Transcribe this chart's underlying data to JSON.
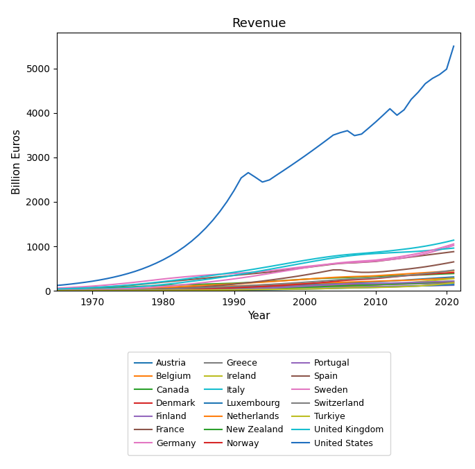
{
  "title": "Revenue",
  "xlabel": "Year",
  "ylabel": "Billion Euros",
  "countries": {
    "Austria": {
      "color": "#1f77b4",
      "start_year": 1965,
      "values": [
        7,
        8,
        9,
        10,
        11,
        12,
        14,
        16,
        18,
        21,
        24,
        27,
        30,
        34,
        38,
        43,
        48,
        54,
        60,
        65,
        70,
        74,
        78,
        82,
        86,
        90,
        95,
        100,
        105,
        110,
        115,
        120,
        125,
        130,
        135,
        140,
        145,
        150,
        160,
        170,
        175,
        180,
        185,
        190,
        195,
        200,
        210,
        220,
        230,
        240,
        250,
        260,
        270,
        280,
        290,
        300,
        310
      ]
    },
    "Belgium": {
      "color": "#ff7f0e",
      "start_year": 1965,
      "values": [
        8,
        9,
        10,
        12,
        14,
        16,
        18,
        21,
        25,
        28,
        32,
        37,
        42,
        48,
        54,
        60,
        65,
        70,
        75,
        80,
        85,
        90,
        95,
        100,
        105,
        110,
        115,
        120,
        125,
        130,
        140,
        145,
        150,
        155,
        160,
        165,
        170,
        175,
        180,
        185,
        190,
        195,
        200,
        205,
        210,
        215,
        220,
        225,
        230,
        235,
        240,
        248,
        255,
        262,
        268,
        274,
        280
      ]
    },
    "Canada": {
      "color": "#2ca02c",
      "start_year": 1965,
      "values": [
        30,
        33,
        37,
        41,
        46,
        51,
        57,
        63,
        70,
        77,
        85,
        93,
        100,
        108,
        115,
        120,
        125,
        130,
        135,
        140,
        145,
        150,
        155,
        160,
        165,
        170,
        178,
        185,
        192,
        200,
        210,
        220,
        230,
        240,
        250,
        260,
        268,
        275,
        282,
        288,
        293,
        298,
        305,
        312,
        318,
        325,
        332,
        338,
        342,
        345,
        350,
        355,
        360,
        368,
        375,
        382,
        388
      ]
    },
    "Denmark": {
      "color": "#d62728",
      "start_year": 1965,
      "values": [
        5,
        6,
        7,
        8,
        9,
        11,
        12,
        14,
        16,
        19,
        22,
        25,
        28,
        32,
        36,
        40,
        44,
        48,
        52,
        56,
        60,
        63,
        66,
        69,
        72,
        75,
        78,
        81,
        84,
        87,
        90,
        93,
        96,
        99,
        102,
        105,
        108,
        111,
        114,
        117,
        120,
        123,
        126,
        129,
        132,
        135,
        140,
        145,
        150,
        155,
        160,
        165,
        170,
        174,
        178,
        182,
        186
      ]
    },
    "Finland": {
      "color": "#9467bd",
      "start_year": 1965,
      "values": [
        3,
        3.5,
        4,
        4.5,
        5,
        6,
        7,
        8,
        9,
        10,
        12,
        14,
        16,
        18,
        20,
        23,
        26,
        29,
        32,
        35,
        38,
        41,
        44,
        47,
        50,
        53,
        56,
        59,
        62,
        65,
        68,
        70,
        72,
        74,
        76,
        78,
        80,
        82,
        84,
        86,
        88,
        90,
        92,
        94,
        96,
        98,
        100,
        102,
        104,
        106,
        108,
        110,
        113,
        116,
        119,
        122,
        125
      ]
    },
    "France": {
      "color": "#8c564b",
      "start_year": 1965,
      "values": [
        40,
        45,
        50,
        56,
        63,
        70,
        78,
        87,
        97,
        108,
        120,
        133,
        147,
        162,
        178,
        195,
        210,
        225,
        240,
        255,
        270,
        285,
        300,
        315,
        330,
        345,
        360,
        375,
        390,
        405,
        420,
        440,
        460,
        480,
        500,
        520,
        540,
        560,
        580,
        600,
        615,
        625,
        630,
        640,
        650,
        660,
        680,
        700,
        720,
        740,
        760,
        780,
        800,
        820,
        840,
        860,
        880
      ]
    },
    "Germany": {
      "color": "#e377c2",
      "start_year": 1965,
      "values": [
        60,
        67,
        75,
        84,
        94,
        105,
        117,
        130,
        144,
        159,
        175,
        192,
        210,
        228,
        247,
        265,
        282,
        298,
        313,
        327,
        340,
        352,
        363,
        373,
        382,
        390,
        400,
        410,
        422,
        435,
        450,
        468,
        487,
        506,
        525,
        543,
        560,
        577,
        592,
        607,
        620,
        630,
        638,
        645,
        655,
        668,
        685,
        700,
        720,
        745,
        770,
        800,
        835,
        875,
        920,
        970,
        1020
      ]
    },
    "Greece": {
      "color": "#7f7f7f",
      "start_year": 1965,
      "values": [
        2,
        2.2,
        2.5,
        2.8,
        3.2,
        3.6,
        4.1,
        4.7,
        5.3,
        6,
        7,
        8,
        9.5,
        11,
        12.5,
        14,
        16,
        18,
        20,
        22,
        25,
        28,
        31,
        35,
        39,
        44,
        49,
        55,
        61,
        68,
        75,
        83,
        91,
        100,
        109,
        118,
        127,
        136,
        143,
        149,
        154,
        157,
        158,
        157,
        155,
        153,
        150,
        148,
        148,
        150,
        153,
        156,
        159,
        162,
        165,
        168,
        171
      ]
    },
    "Ireland": {
      "color": "#bcbd22",
      "start_year": 1965,
      "values": [
        1,
        1.2,
        1.4,
        1.6,
        1.9,
        2.2,
        2.6,
        3,
        3.5,
        4,
        4.7,
        5.5,
        6.3,
        7.2,
        8.2,
        9.3,
        10.5,
        11.8,
        13.2,
        14.7,
        16.5,
        18.5,
        20.7,
        23,
        25.5,
        28,
        31,
        34,
        38,
        42,
        47,
        52,
        57,
        63,
        69,
        75,
        82,
        90,
        98,
        105,
        108,
        110,
        113,
        118,
        124,
        132,
        142,
        152,
        163,
        175,
        188,
        200,
        215,
        230,
        245,
        260,
        275
      ]
    },
    "Italy": {
      "color": "#17becf",
      "start_year": 1965,
      "values": [
        20,
        23,
        26,
        29,
        33,
        37,
        42,
        48,
        55,
        63,
        72,
        83,
        95,
        109,
        124,
        140,
        157,
        175,
        194,
        213,
        233,
        254,
        276,
        299,
        323,
        348,
        374,
        400,
        427,
        455,
        483,
        512,
        541,
        570,
        599,
        628,
        657,
        685,
        712,
        737,
        760,
        781,
        799,
        815,
        828,
        838,
        845,
        855,
        862,
        870,
        878,
        888,
        900,
        915,
        930,
        945,
        960
      ]
    },
    "Luxembourg": {
      "color": "#1f77b4",
      "start_year": 1965,
      "values": [
        0.5,
        0.6,
        0.7,
        0.8,
        0.9,
        1.0,
        1.2,
        1.4,
        1.6,
        1.9,
        2.2,
        2.5,
        2.9,
        3.3,
        3.8,
        4.3,
        4.9,
        5.5,
        6.2,
        7.0,
        7.9,
        8.9,
        10,
        11.2,
        12.5,
        14,
        15.7,
        17.5,
        19.5,
        21.7,
        24,
        26.5,
        29,
        31.8,
        34.8,
        38,
        41.5,
        45,
        49,
        53,
        57,
        61,
        65,
        69,
        73,
        77,
        82,
        87,
        92,
        97,
        102,
        108,
        114,
        120,
        126,
        133,
        140
      ]
    },
    "Netherlands": {
      "color": "#ff7f0e",
      "start_year": 1965,
      "values": [
        12,
        14,
        16,
        18,
        20,
        23,
        26,
        30,
        34,
        38,
        43,
        48,
        54,
        61,
        68,
        76,
        84,
        92,
        100,
        108,
        116,
        124,
        132,
        140,
        148,
        156,
        165,
        174,
        184,
        194,
        204,
        215,
        226,
        237,
        248,
        259,
        270,
        281,
        291,
        300,
        308,
        315,
        320,
        325,
        330,
        338,
        348,
        358,
        368,
        378,
        388,
        398,
        408,
        418,
        428,
        438,
        448
      ]
    },
    "New Zealand": {
      "color": "#2ca02c",
      "start_year": 1965,
      "values": [
        2,
        2.3,
        2.6,
        2.9,
        3.3,
        3.7,
        4.2,
        4.7,
        5.3,
        6,
        6.8,
        7.7,
        8.7,
        9.8,
        11,
        12.3,
        13.8,
        15.4,
        17.2,
        19.1,
        21.2,
        23.5,
        26,
        28.7,
        31.6,
        34.7,
        38,
        41.5,
        45.3,
        49.3,
        53.6,
        58.2,
        63,
        68,
        73.3,
        78.8,
        84.7,
        91,
        97.5,
        104,
        110,
        115,
        120,
        125,
        130,
        136,
        143,
        150,
        157,
        164,
        171,
        178,
        185,
        192,
        200,
        208,
        216
      ]
    },
    "Norway": {
      "color": "#d62728",
      "start_year": 1965,
      "values": [
        4,
        4.5,
        5,
        5.7,
        6.5,
        7.3,
        8.3,
        9.4,
        10.7,
        12.1,
        13.7,
        15.5,
        17.5,
        19.8,
        22.3,
        25,
        28,
        31.3,
        34.8,
        38.6,
        42.7,
        47.1,
        52,
        57.3,
        63,
        69,
        75.5,
        82.5,
        90,
        98,
        106,
        115,
        124,
        134,
        145,
        156,
        168,
        181,
        195,
        210,
        225,
        238,
        248,
        256,
        265,
        276,
        290,
        305,
        320,
        335,
        348,
        360,
        372,
        383,
        393,
        402,
        410
      ]
    },
    "Portugal": {
      "color": "#9467bd",
      "start_year": 1965,
      "values": [
        1,
        1.1,
        1.3,
        1.5,
        1.7,
        1.9,
        2.2,
        2.5,
        2.9,
        3.3,
        3.8,
        4.4,
        5.1,
        5.9,
        6.8,
        7.8,
        9,
        10.4,
        12,
        14,
        16.3,
        18.8,
        21.6,
        24.8,
        28.4,
        32.4,
        36.9,
        41.9,
        47.5,
        53.7,
        60.5,
        68,
        76.2,
        85,
        94,
        103,
        112,
        121,
        130,
        139,
        147,
        153,
        157,
        159,
        160,
        163,
        167,
        172,
        177,
        182,
        187,
        192,
        197,
        202,
        207,
        213,
        219
      ]
    },
    "Spain": {
      "color": "#8c564b",
      "start_year": 1965,
      "values": [
        5,
        6,
        7,
        8,
        9,
        10.5,
        12,
        14,
        16,
        18.5,
        21.5,
        25,
        29,
        33.5,
        38.5,
        44,
        50,
        57,
        65,
        74,
        84,
        95,
        107,
        120,
        134,
        149,
        165,
        182,
        200,
        219,
        239,
        260,
        282,
        305,
        329,
        355,
        382,
        410,
        440,
        470,
        470,
        445,
        425,
        415,
        415,
        420,
        430,
        445,
        462,
        480,
        498,
        518,
        540,
        565,
        592,
        620,
        650
      ]
    },
    "Sweden": {
      "color": "#e377c2",
      "start_year": 1965,
      "values": [
        10,
        12,
        14,
        16,
        19,
        22,
        26,
        30,
        35,
        41,
        48,
        56,
        65,
        75,
        86,
        98,
        111,
        125,
        140,
        156,
        173,
        190,
        208,
        227,
        247,
        268,
        290,
        313,
        337,
        362,
        388,
        414,
        440,
        466,
        492,
        518,
        543,
        567,
        590,
        612,
        630,
        645,
        657,
        668,
        678,
        690,
        710,
        732,
        756,
        782,
        810,
        840,
        875,
        915,
        958,
        1004,
        1053
      ]
    },
    "Switzerland": {
      "color": "#7f7f7f",
      "start_year": 1965,
      "values": [
        6,
        7,
        8,
        9,
        10,
        11.5,
        13,
        14.8,
        16.8,
        19,
        21.5,
        24.3,
        27.4,
        30.8,
        34.6,
        38.7,
        43.2,
        48,
        53.2,
        58.8,
        64.8,
        71.2,
        77.9,
        84.9,
        92.2,
        99.8,
        107.7,
        115.9,
        124.4,
        133.3,
        142.5,
        152,
        161.8,
        171.9,
        182.3,
        192.9,
        203.8,
        215,
        226.5,
        238.2,
        250,
        260,
        268,
        275,
        282,
        290,
        300,
        312,
        325,
        339,
        354,
        370,
        387,
        405,
        424,
        444,
        465
      ]
    },
    "Turkiye": {
      "color": "#bcbd22",
      "start_year": 1965,
      "values": [
        1,
        1.1,
        1.3,
        1.5,
        1.8,
        2.1,
        2.5,
        3.0,
        3.5,
        4,
        5,
        6,
        7,
        8,
        9,
        10,
        11,
        12,
        13,
        14,
        15,
        16,
        17,
        18,
        19,
        20,
        22,
        24,
        26,
        28,
        30,
        32,
        34,
        36,
        38,
        40,
        43,
        46,
        50,
        55,
        60,
        65,
        68,
        70,
        72,
        75,
        78,
        82,
        87,
        93,
        100,
        108,
        118,
        130,
        145,
        162,
        180
      ]
    },
    "United Kingdom": {
      "color": "#17becf",
      "start_year": 1965,
      "values": [
        40,
        45,
        51,
        57,
        64,
        72,
        81,
        91,
        102,
        114,
        127,
        141,
        156,
        172,
        189,
        207,
        225,
        244,
        264,
        284,
        305,
        326,
        348,
        370,
        393,
        416,
        440,
        465,
        491,
        518,
        545,
        573,
        601,
        629,
        657,
        684,
        710,
        735,
        758,
        779,
        798,
        814,
        828,
        840,
        853,
        867,
        882,
        898,
        916,
        935,
        955,
        978,
        1004,
        1033,
        1065,
        1100,
        1138
      ]
    },
    "United States": {
      "color": "#1f6fbf",
      "start_year": 1965,
      "values": [
        120,
        135,
        152,
        171,
        192,
        215,
        242,
        272,
        306,
        344,
        387,
        435,
        490,
        552,
        621,
        698,
        785,
        882,
        992,
        1115,
        1254,
        1410,
        1586,
        1784,
        2006,
        2256,
        2538,
        2656,
        2553,
        2445,
        2494,
        2601,
        2706,
        2813,
        2922,
        3033,
        3147,
        3263,
        3381,
        3501,
        3556,
        3600,
        3489,
        3524,
        3659,
        3797,
        3943,
        4093,
        3948,
        4069,
        4303,
        4466,
        4658,
        4775,
        4861,
        4983,
        5500
      ]
    }
  }
}
